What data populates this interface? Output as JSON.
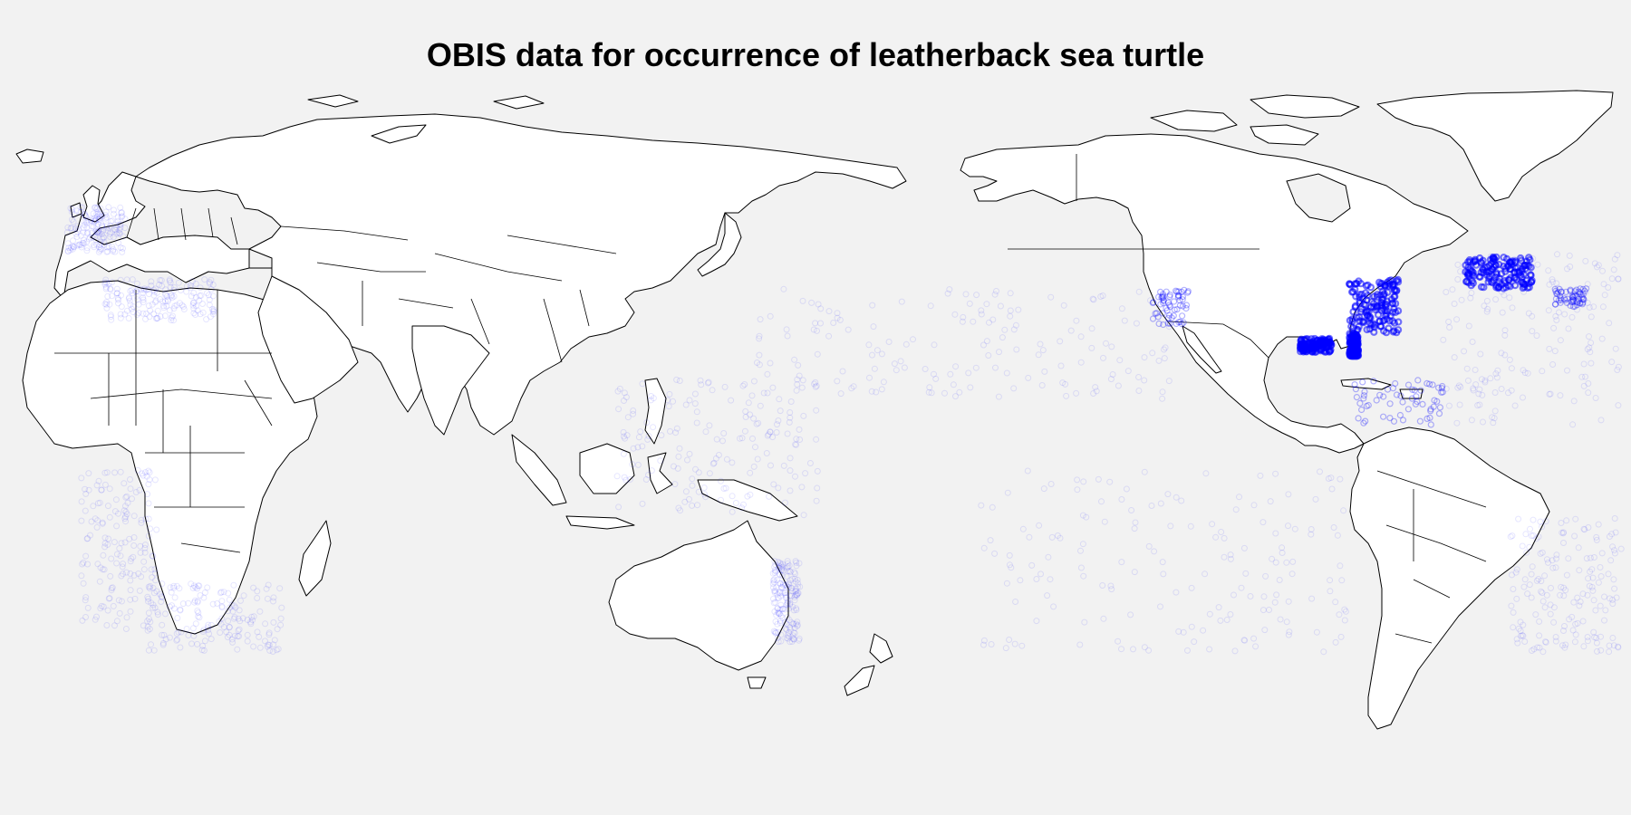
{
  "title": "OBIS data for occurrence of leatherback sea turtle",
  "colors": {
    "background": "#f2f2f2",
    "land": "#ffffff",
    "coastline": "#000000",
    "occurrence": "#0000ff"
  },
  "map": {
    "projection": "equirectangular, Pacific-centered",
    "longitude_range": [
      -20,
      340
    ],
    "latitude_range": [
      -60,
      84
    ]
  },
  "occurrence_clusters": [
    {
      "name": "us-east-coast",
      "lon_range": [
        -81,
        -70
      ],
      "lat_range": [
        30,
        42
      ],
      "density": "high"
    },
    {
      "name": "florida-east",
      "lon_range": [
        -81,
        -79
      ],
      "lat_range": [
        25,
        30
      ],
      "density": "high"
    },
    {
      "name": "gulf-of-mexico",
      "lon_range": [
        -92,
        -85
      ],
      "lat_range": [
        26,
        29
      ],
      "density": "high"
    },
    {
      "name": "north-atlantic-east-canada",
      "lon_range": [
        -55,
        -40
      ],
      "lat_range": [
        40,
        47
      ],
      "density": "high"
    },
    {
      "name": "mid-atlantic",
      "lon_range": [
        -35,
        -28
      ],
      "lat_range": [
        36,
        40
      ],
      "density": "medium"
    },
    {
      "name": "north-atlantic-open",
      "lon_range": [
        -60,
        -20
      ],
      "lat_range": [
        10,
        48
      ],
      "density": "low"
    },
    {
      "name": "caribbean",
      "lon_range": [
        -80,
        -60
      ],
      "lat_range": [
        10,
        20
      ],
      "density": "medium"
    },
    {
      "name": "us-west-coast",
      "lon_range": [
        -125,
        -117
      ],
      "lat_range": [
        32,
        40
      ],
      "density": "medium"
    },
    {
      "name": "north-pacific-tracks",
      "lon_range": [
        145,
        240
      ],
      "lat_range": [
        15,
        40
      ],
      "density": "low"
    },
    {
      "name": "indo-west-pacific",
      "lon_range": [
        115,
        160
      ],
      "lat_range": [
        -10,
        20
      ],
      "density": "low"
    },
    {
      "name": "south-pacific-tracks",
      "lon_range": [
        195,
        280
      ],
      "lat_range": [
        -40,
        0
      ],
      "density": "low"
    },
    {
      "name": "south-atlantic-brazil",
      "lon_range": [
        -45,
        -20
      ],
      "lat_range": [
        -40,
        -10
      ],
      "density": "low"
    },
    {
      "name": "west-africa",
      "lon_range": [
        -5,
        12
      ],
      "lat_range": [
        -35,
        0
      ],
      "density": "low"
    },
    {
      "name": "southern-africa",
      "lon_range": [
        10,
        40
      ],
      "lat_range": [
        -40,
        -25
      ],
      "density": "low"
    },
    {
      "name": "east-australia",
      "lon_range": [
        150,
        156
      ],
      "lat_range": [
        -38,
        -20
      ],
      "density": "low"
    },
    {
      "name": "mediterranean",
      "lon_range": [
        0,
        25
      ],
      "lat_range": [
        33,
        42
      ],
      "density": "low"
    },
    {
      "name": "north-sea-uk",
      "lon_range": [
        -8,
        5
      ],
      "lat_range": [
        48,
        58
      ],
      "density": "low"
    }
  ]
}
